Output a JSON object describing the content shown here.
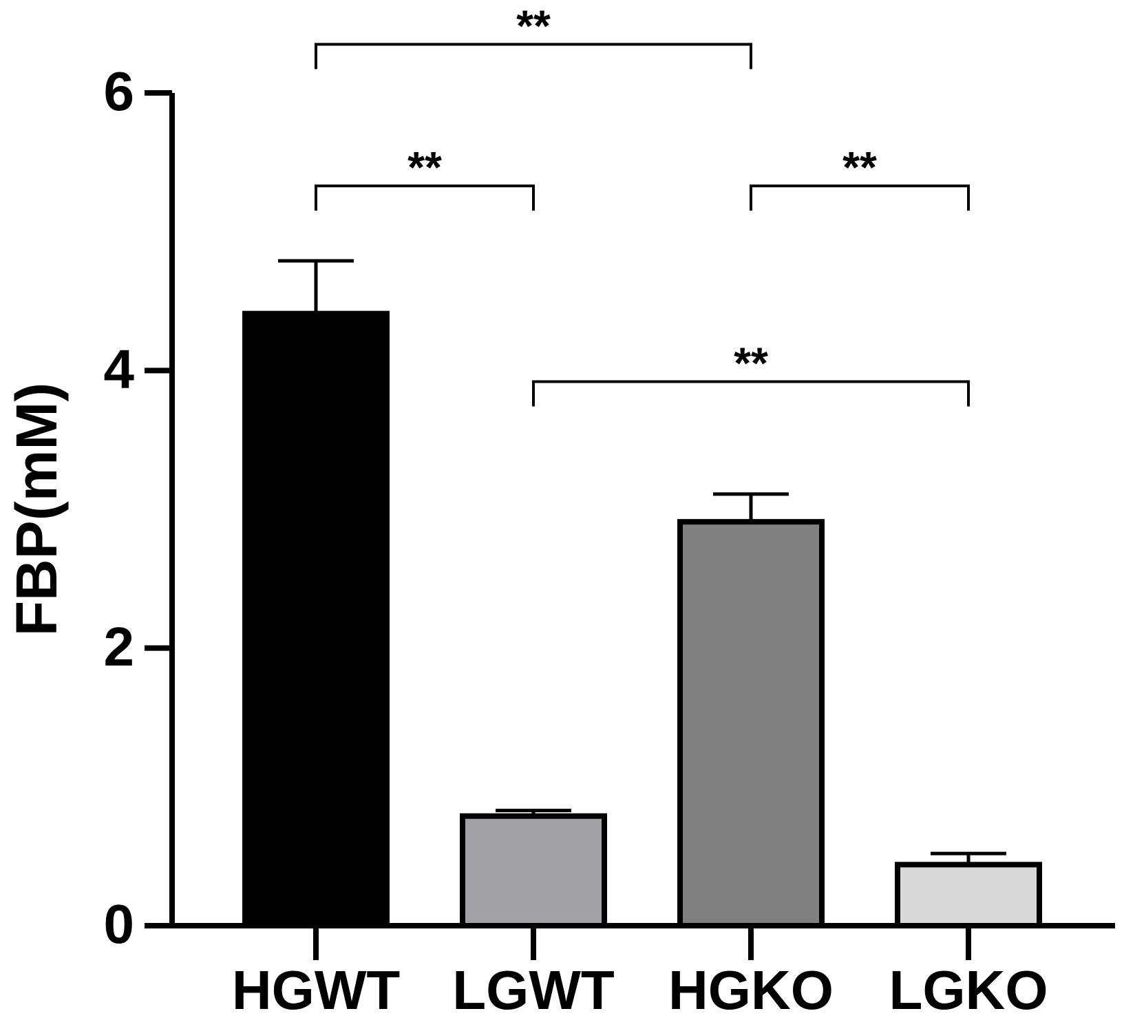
{
  "chart_data": {
    "type": "bar",
    "y_label": "FBP(mM)",
    "categories": [
      "HGWT",
      "LGWT",
      "HGKO",
      "LGKO"
    ],
    "values": [
      4.41,
      0.79,
      2.91,
      0.44
    ],
    "errors": [
      0.38,
      0.04,
      0.2,
      0.08
    ],
    "colors": [
      "#000000",
      "#a1a1a5",
      "#808080",
      "#d8d8d8"
    ],
    "ylim": [
      0,
      6
    ],
    "yticks": [
      0,
      2,
      4,
      6
    ],
    "grid": false,
    "significance": [
      {
        "from": 0,
        "to": 2,
        "y": 6.35,
        "label": "**"
      },
      {
        "from": 0,
        "to": 1,
        "y": 5.33,
        "label": "**"
      },
      {
        "from": 2,
        "to": 3,
        "y": 5.33,
        "label": "**"
      },
      {
        "from": 1,
        "to": 3,
        "y": 3.92,
        "label": "**"
      }
    ]
  }
}
